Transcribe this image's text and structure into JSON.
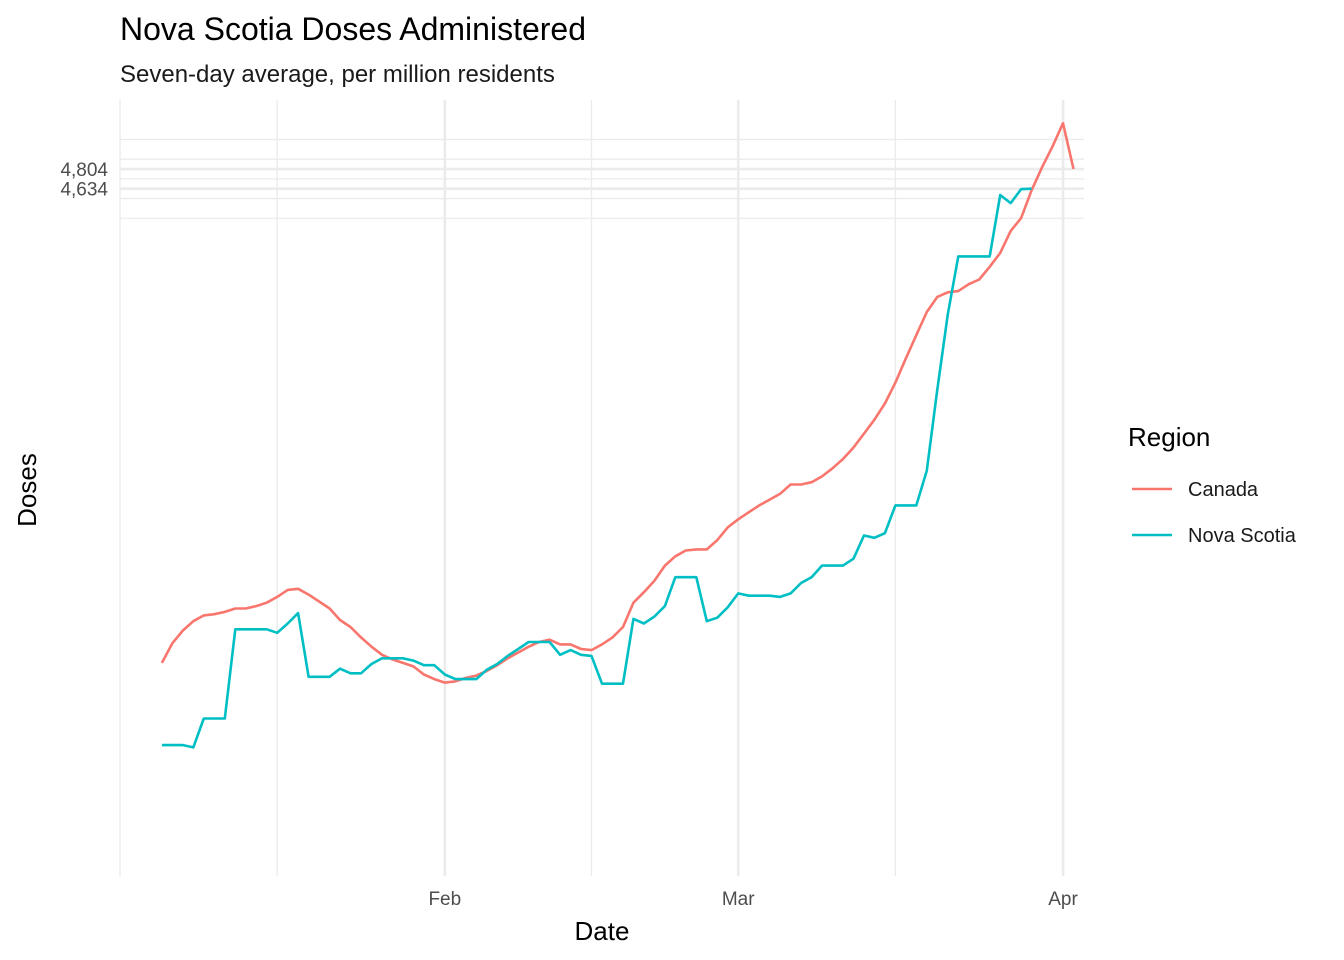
{
  "chart_data": {
    "type": "line",
    "title": "Nova Scotia Doses Administered",
    "subtitle": "Seven-day average, per million residents",
    "xlabel": "Date",
    "ylabel": "Doses",
    "x_tick_labels": [
      "Feb",
      "Mar",
      "Apr"
    ],
    "y_tick_labels": [
      "4,804",
      "4,634"
    ],
    "y_breaks_values": [
      4804,
      4634
    ],
    "x_range": [
      "2021-01-01",
      "2021-04-03"
    ],
    "ylim": [
      -1300,
      5400
    ],
    "grid": true,
    "legend": {
      "title": "Region",
      "position": "right"
    },
    "x_start": "2021-01-05",
    "series": [
      {
        "name": "Canada",
        "color": "#F8766D",
        "values": [
          540,
          710,
          820,
          900,
          950,
          960,
          980,
          1010,
          1010,
          1030,
          1060,
          1110,
          1170,
          1180,
          1130,
          1070,
          1010,
          910,
          850,
          760,
          680,
          610,
          570,
          540,
          510,
          440,
          400,
          370,
          380,
          410,
          430,
          470,
          520,
          580,
          630,
          680,
          720,
          740,
          700,
          700,
          660,
          650,
          700,
          760,
          850,
          1060,
          1150,
          1250,
          1380,
          1460,
          1510,
          1520,
          1520,
          1600,
          1710,
          1780,
          1840,
          1900,
          1950,
          2000,
          2080,
          2080,
          2100,
          2150,
          2220,
          2300,
          2400,
          2520,
          2640,
          2780,
          2960,
          3170,
          3370,
          3570,
          3700,
          3740,
          3750,
          3810,
          3850,
          3960,
          4080,
          4270,
          4380,
          4620,
          4820,
          5000,
          5200,
          4804
        ]
      },
      {
        "name": "Nova Scotia",
        "color": "#00BFC4",
        "values": [
          -170,
          -170,
          -170,
          -190,
          60,
          60,
          60,
          830,
          830,
          830,
          830,
          800,
          880,
          970,
          420,
          420,
          420,
          490,
          450,
          450,
          530,
          580,
          580,
          580,
          560,
          520,
          520,
          440,
          400,
          400,
          400,
          480,
          530,
          600,
          660,
          720,
          720,
          720,
          610,
          650,
          610,
          600,
          360,
          360,
          360,
          920,
          880,
          940,
          1030,
          1280,
          1280,
          1280,
          900,
          930,
          1020,
          1140,
          1120,
          1120,
          1120,
          1110,
          1140,
          1230,
          1280,
          1380,
          1380,
          1380,
          1440,
          1640,
          1620,
          1660,
          1900,
          1900,
          1900,
          2200,
          2900,
          3550,
          4050,
          4050,
          4050,
          4050,
          4580,
          4510,
          4630,
          4634
        ]
      }
    ]
  }
}
